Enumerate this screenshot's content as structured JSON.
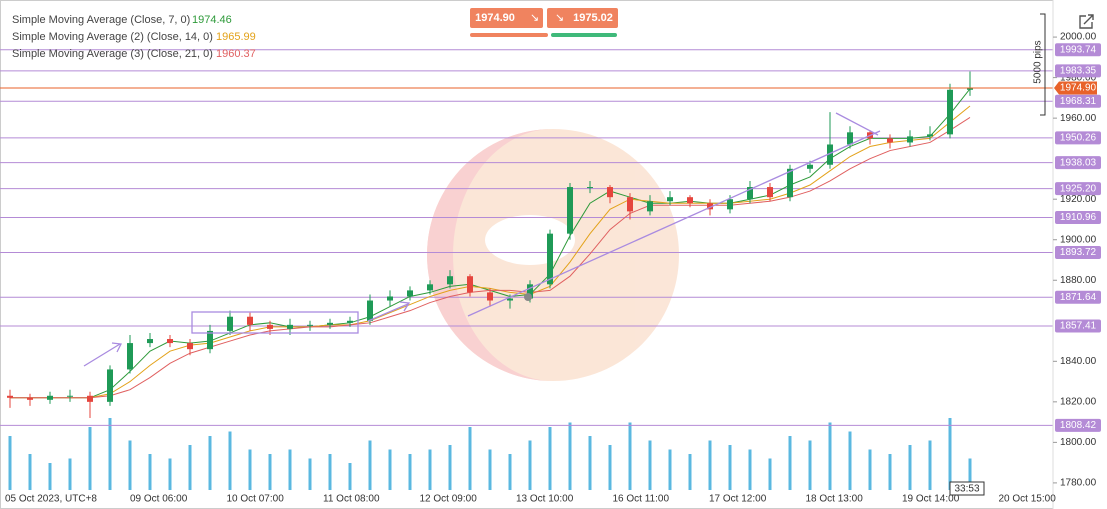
{
  "chart_data": {
    "type": "candlestick",
    "x_labels": [
      "05 Oct 2023, UTC+8",
      "09 Oct 06:00",
      "10 Oct 07:00",
      "11 Oct 08:00",
      "12 Oct 09:00",
      "13 Oct 10:00",
      "16 Oct 11:00",
      "17 Oct 12:00",
      "18 Oct 13:00",
      "19 Oct 14:00",
      "20 Oct 15:00"
    ],
    "ylim": [
      1776.5,
      2018.3
    ],
    "yticks": [
      {
        "value": 1780,
        "label": "1780.00"
      },
      {
        "value": 1800,
        "label": "1800.00"
      },
      {
        "value": 1820,
        "label": "1820.00"
      },
      {
        "value": 1840,
        "label": "1840.00"
      },
      {
        "value": 1880,
        "label": "1880.00"
      },
      {
        "value": 1900,
        "label": "1900.00"
      },
      {
        "value": 1920,
        "label": "1920.00"
      },
      {
        "value": 1960,
        "label": "1960.00"
      },
      {
        "value": 1980,
        "label": "1980.00"
      },
      {
        "value": 2000,
        "label": "2000.00"
      }
    ],
    "open": [
      1823,
      1822,
      1821,
      1823,
      1823,
      1820,
      1836,
      1849,
      1851,
      1849,
      1846,
      1855,
      1862,
      1858,
      1856,
      1858,
      1858,
      1859,
      1860,
      1870,
      1872,
      1875,
      1878,
      1882,
      1874,
      1870,
      1871,
      1878,
      1903,
      1926,
      1926,
      1921,
      1914,
      1919,
      1921,
      1918,
      1915,
      1920,
      1926,
      1921,
      1935,
      1937,
      1947,
      1953,
      1950,
      1948,
      1951,
      1952,
      1974
    ],
    "high": [
      1826,
      1824,
      1825,
      1826,
      1825,
      1838,
      1853,
      1854,
      1853,
      1851,
      1858,
      1865,
      1864,
      1860,
      1861,
      1860,
      1861,
      1862,
      1873,
      1875,
      1877,
      1880,
      1885,
      1883,
      1876,
      1873,
      1880,
      1905,
      1928,
      1929,
      1927,
      1923,
      1922,
      1924,
      1922,
      1920,
      1922,
      1929,
      1928,
      1937,
      1939,
      1963,
      1956,
      1954,
      1952,
      1954,
      1956,
      1977,
      1983
    ],
    "low": [
      1817,
      1818,
      1819,
      1820,
      1812,
      1818,
      1834,
      1847,
      1847,
      1843,
      1844,
      1853,
      1855,
      1853,
      1853,
      1855,
      1856,
      1857,
      1858,
      1867,
      1870,
      1873,
      1876,
      1872,
      1867,
      1866,
      1869,
      1876,
      1900,
      1923,
      1918,
      1910,
      1912,
      1917,
      1916,
      1912,
      1913,
      1918,
      1919,
      1919,
      1933,
      1935,
      1945,
      1947,
      1945,
      1946,
      1949,
      1950,
      1971
    ],
    "close": [
      1822,
      1821,
      1823,
      1823,
      1820,
      1836,
      1849,
      1851,
      1849,
      1846,
      1855,
      1862,
      1858,
      1856,
      1858,
      1858,
      1859,
      1860,
      1870,
      1872,
      1875,
      1878,
      1882,
      1874,
      1870,
      1871,
      1878,
      1903,
      1926,
      1926,
      1921,
      1914,
      1919,
      1921,
      1918,
      1915,
      1920,
      1926,
      1921,
      1935,
      1937,
      1947,
      1953,
      1950,
      1948,
      1951,
      1952,
      1974,
      1975
    ],
    "up_color": "#1f9a57",
    "down_color": "#e5453d",
    "series": [
      {
        "name": "Simple Moving Average (Close, 7, 0)",
        "color": "#2e9a3a",
        "values": [
          1822,
          1822,
          1822,
          1822,
          1822,
          1826,
          1835,
          1845,
          1850,
          1849,
          1850,
          1854,
          1858,
          1859,
          1857,
          1857,
          1858,
          1859,
          1862,
          1867,
          1872,
          1874,
          1877,
          1878,
          1875,
          1872,
          1873,
          1883,
          1902,
          1918,
          1924,
          1921,
          1918,
          1918,
          1919,
          1918,
          1918,
          1920,
          1922,
          1927,
          1931,
          1940,
          1946,
          1950,
          1950,
          1950,
          1951,
          1962,
          1974.46
        ]
      },
      {
        "name": "Simple Moving Average (2) (Close, 14, 0)",
        "color": "#e3a21a",
        "values": [
          1822,
          1822,
          1822,
          1822,
          1822,
          1824,
          1830,
          1838,
          1845,
          1848,
          1849,
          1852,
          1855,
          1857,
          1857,
          1857,
          1858,
          1858,
          1860,
          1864,
          1868,
          1872,
          1875,
          1877,
          1876,
          1874,
          1873,
          1877,
          1889,
          1903,
          1915,
          1920,
          1919,
          1918,
          1918,
          1918,
          1918,
          1919,
          1920,
          1923,
          1927,
          1934,
          1941,
          1946,
          1948,
          1949,
          1950,
          1958,
          1965.99
        ]
      },
      {
        "name": "Simple Moving Average (3) (Close, 21, 0)",
        "color": "#e06060",
        "values": [
          1822,
          1822,
          1822,
          1822,
          1822,
          1823,
          1826,
          1832,
          1839,
          1844,
          1847,
          1850,
          1853,
          1855,
          1856,
          1857,
          1857,
          1858,
          1859,
          1862,
          1865,
          1869,
          1872,
          1874,
          1875,
          1875,
          1874,
          1875,
          1882,
          1893,
          1905,
          1913,
          1917,
          1917,
          1917,
          1917,
          1917,
          1918,
          1919,
          1921,
          1924,
          1929,
          1935,
          1940,
          1944,
          1946,
          1948,
          1954,
          1960.37
        ]
      }
    ],
    "volume": [
      60,
      40,
      30,
      35,
      70,
      80,
      55,
      40,
      35,
      50,
      60,
      65,
      45,
      40,
      45,
      35,
      40,
      30,
      55,
      45,
      40,
      45,
      50,
      70,
      45,
      40,
      55,
      70,
      75,
      60,
      50,
      75,
      55,
      45,
      40,
      55,
      50,
      45,
      35,
      60,
      55,
      75,
      65,
      45,
      40,
      50,
      55,
      80,
      35
    ],
    "volume_color": "#5bb8e0",
    "levels": [
      1993.74,
      1983.35,
      1968.31,
      1950.26,
      1938.03,
      {
        "value": 1925.2,
        "label": "1925.20"
      },
      1910.96,
      1893.72,
      1871.64,
      1857.41,
      1808.42
    ],
    "level_color": "#b48bd6",
    "current_price": {
      "value": 1974.9,
      "label": "1974.90"
    },
    "current_color": "#e8622a",
    "buy_price": 1975.02,
    "range_label": "5000 pips",
    "timer": "33:53"
  }
}
